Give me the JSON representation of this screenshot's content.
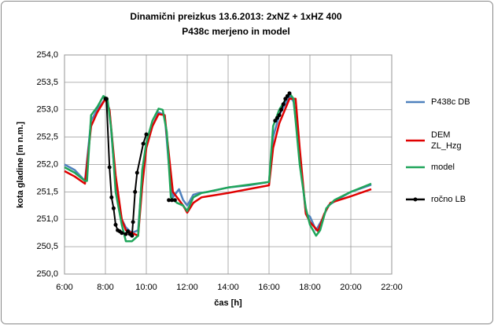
{
  "chart_data": {
    "type": "line",
    "title": [
      "Dinamični preizkus 13.6.2013:  2xNZ + 1xHZ 400",
      "P438c merjeno in model"
    ],
    "x_label": "čas [h]",
    "y_label": "kota gladine [m n.m.]",
    "xlim": [
      6,
      22
    ],
    "xticks": [
      {
        "value": 6,
        "label": "6:00"
      },
      {
        "value": 8,
        "label": "8:00"
      },
      {
        "value": 10,
        "label": "10:00"
      },
      {
        "value": 12,
        "label": "12:00"
      },
      {
        "value": 14,
        "label": "14:00"
      },
      {
        "value": 16,
        "label": "16:00"
      },
      {
        "value": 18,
        "label": "18:00"
      },
      {
        "value": 20,
        "label": "20:00"
      },
      {
        "value": 22,
        "label": "22:00"
      }
    ],
    "ylim": [
      250,
      254
    ],
    "yticks": [
      {
        "value": 250,
        "label": "250,0"
      },
      {
        "value": 250.5,
        "label": "250,5"
      },
      {
        "value": 251,
        "label": "251,0"
      },
      {
        "value": 251.5,
        "label": "251,5"
      },
      {
        "value": 252,
        "label": "252,0"
      },
      {
        "value": 252.5,
        "label": "252,5"
      },
      {
        "value": 253,
        "label": "253,0"
      },
      {
        "value": 253.5,
        "label": "253,5"
      },
      {
        "value": 254,
        "label": "254,0"
      }
    ],
    "grid": true,
    "legend": "right",
    "series": [
      {
        "name": "P438c DB",
        "color": "#4f81bd",
        "marker": false,
        "x": [
          6.0,
          6.5,
          7.0,
          7.3,
          7.6,
          8.0,
          8.2,
          8.5,
          8.8,
          9.0,
          9.3,
          9.6,
          9.8,
          10.0,
          10.3,
          10.6,
          10.9,
          11.1,
          11.3,
          11.6,
          11.8,
          12.0,
          12.3,
          12.6,
          13.0,
          14.0,
          15.0,
          16.0,
          16.2,
          16.5,
          17.0,
          17.2,
          17.5,
          17.8,
          18.0,
          18.3,
          18.6,
          18.9,
          19.3,
          20.0,
          21.0
        ],
        "values": [
          252.0,
          251.9,
          251.7,
          252.8,
          253.0,
          253.2,
          253.0,
          251.6,
          251.0,
          250.85,
          250.75,
          250.8,
          251.8,
          252.4,
          252.7,
          252.95,
          252.9,
          252.0,
          251.4,
          251.55,
          251.35,
          251.25,
          251.45,
          251.48,
          251.5,
          251.58,
          251.62,
          251.68,
          252.5,
          252.9,
          253.25,
          253.15,
          252.2,
          251.1,
          251.05,
          250.8,
          251.0,
          251.25,
          251.35,
          251.5,
          251.63
        ]
      },
      {
        "name": "DEM ZL_Hzg",
        "color": "#e00000",
        "marker": false,
        "x": [
          6.0,
          6.5,
          7.0,
          7.3,
          7.6,
          8.0,
          8.2,
          8.5,
          8.8,
          9.0,
          9.3,
          9.6,
          9.8,
          10.0,
          10.3,
          10.6,
          10.9,
          11.1,
          11.3,
          11.6,
          11.8,
          12.0,
          12.3,
          12.7,
          13.0,
          14.0,
          15.0,
          16.0,
          16.2,
          16.5,
          17.0,
          17.3,
          17.5,
          17.8,
          18.0,
          18.4,
          18.7,
          19.0,
          20.0,
          21.0
        ],
        "values": [
          251.88,
          251.78,
          251.65,
          252.7,
          252.95,
          253.2,
          253.0,
          251.8,
          251.0,
          250.8,
          250.75,
          250.7,
          251.6,
          252.3,
          252.7,
          252.92,
          252.9,
          252.2,
          251.5,
          251.35,
          251.25,
          251.12,
          251.3,
          251.4,
          251.42,
          251.48,
          251.55,
          251.62,
          252.3,
          252.75,
          253.2,
          253.2,
          252.3,
          251.1,
          250.95,
          250.78,
          251.1,
          251.3,
          251.42,
          251.55
        ]
      },
      {
        "name": "model",
        "color": "#1fa55a",
        "marker": false,
        "x": [
          6.0,
          6.5,
          7.0,
          7.1,
          7.3,
          7.6,
          7.9,
          8.1,
          8.3,
          8.5,
          8.8,
          9.0,
          9.3,
          9.6,
          9.8,
          10.0,
          10.3,
          10.6,
          10.8,
          11.0,
          11.2,
          11.5,
          11.8,
          12.0,
          12.3,
          12.7,
          13.0,
          14.0,
          15.0,
          16.0,
          16.2,
          16.5,
          17.0,
          17.2,
          17.5,
          17.8,
          18.0,
          18.3,
          18.5,
          18.8,
          19.2,
          20.0,
          21.0
        ],
        "values": [
          251.95,
          251.85,
          251.7,
          251.7,
          252.9,
          253.05,
          253.25,
          253.2,
          252.6,
          251.5,
          250.9,
          250.6,
          250.6,
          250.7,
          251.9,
          252.4,
          252.8,
          253.02,
          253.0,
          252.6,
          251.4,
          251.3,
          251.25,
          251.15,
          251.4,
          251.48,
          251.5,
          251.58,
          251.63,
          251.68,
          252.7,
          253.0,
          253.3,
          253.2,
          252.0,
          251.2,
          250.9,
          250.7,
          250.8,
          251.2,
          251.35,
          251.5,
          251.65
        ]
      },
      {
        "name": "ročno LB",
        "color": "#000000",
        "marker": true,
        "x": [
          8.0,
          8.05,
          8.2,
          8.3,
          8.4,
          8.5,
          8.6,
          8.7,
          8.8,
          9.0,
          9.1,
          9.2,
          9.3,
          9.35,
          9.45,
          9.55,
          9.85,
          10.0,
          10.5,
          11.1,
          11.25,
          11.4,
          14.0,
          16.3,
          16.4,
          16.5,
          16.6,
          16.7,
          16.8,
          16.9,
          17.0
        ],
        "values": [
          253.2,
          253.2,
          251.95,
          251.4,
          251.2,
          250.9,
          250.8,
          250.78,
          250.75,
          250.73,
          250.78,
          250.73,
          250.7,
          250.95,
          251.5,
          251.85,
          252.38,
          252.55,
          null,
          251.35,
          251.35,
          251.35,
          null,
          252.8,
          252.85,
          252.9,
          253.0,
          253.1,
          253.2,
          253.25,
          253.3
        ]
      }
    ]
  }
}
